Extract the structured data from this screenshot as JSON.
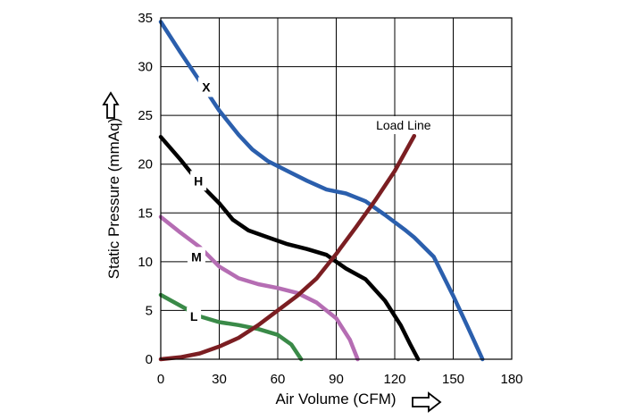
{
  "chart_data": {
    "type": "line",
    "xlabel": "Air Volume (CFM)",
    "ylabel": "Static Pressure (mmAq)",
    "xlim": [
      0,
      180
    ],
    "ylim": [
      0,
      35
    ],
    "x_ticks": [
      0,
      30,
      60,
      90,
      120,
      150,
      180
    ],
    "y_ticks": [
      0,
      5,
      10,
      15,
      20,
      25,
      30,
      35
    ],
    "grid": true,
    "series": [
      {
        "name": "X",
        "color": "#2b5fad",
        "points": [
          [
            0,
            34.6
          ],
          [
            10,
            31.5
          ],
          [
            20,
            28.5
          ],
          [
            30,
            25.5
          ],
          [
            40,
            23
          ],
          [
            47,
            21.5
          ],
          [
            55,
            20.3
          ],
          [
            65,
            19.3
          ],
          [
            75,
            18.3
          ],
          [
            85,
            17.4
          ],
          [
            95,
            17.0
          ],
          [
            105,
            16.2
          ],
          [
            115,
            14.8
          ],
          [
            125,
            13.3
          ],
          [
            130,
            12.5
          ],
          [
            140,
            10.5
          ],
          [
            150,
            6.5
          ],
          [
            157,
            3.5
          ],
          [
            165,
            0
          ]
        ]
      },
      {
        "name": "H",
        "color": "#000000",
        "points": [
          [
            0,
            22.8
          ],
          [
            10,
            20.5
          ],
          [
            20,
            18.0
          ],
          [
            30,
            16.0
          ],
          [
            37,
            14.3
          ],
          [
            45,
            13.2
          ],
          [
            55,
            12.5
          ],
          [
            65,
            11.8
          ],
          [
            75,
            11.3
          ],
          [
            85,
            10.7
          ],
          [
            95,
            9.3
          ],
          [
            105,
            8.2
          ],
          [
            115,
            6.0
          ],
          [
            123,
            3.5
          ],
          [
            128,
            1.5
          ],
          [
            132,
            0
          ]
        ]
      },
      {
        "name": "M",
        "color": "#b56db3",
        "points": [
          [
            0,
            14.6
          ],
          [
            10,
            13.0
          ],
          [
            20,
            11.5
          ],
          [
            30,
            9.5
          ],
          [
            40,
            8.3
          ],
          [
            50,
            7.7
          ],
          [
            60,
            7.3
          ],
          [
            70,
            6.8
          ],
          [
            80,
            5.8
          ],
          [
            90,
            4.2
          ],
          [
            97,
            2.0
          ],
          [
            101,
            0
          ]
        ]
      },
      {
        "name": "L",
        "color": "#3a8a48",
        "points": [
          [
            0,
            6.6
          ],
          [
            10,
            5.5
          ],
          [
            20,
            4.4
          ],
          [
            30,
            3.8
          ],
          [
            40,
            3.5
          ],
          [
            50,
            3.1
          ],
          [
            60,
            2.5
          ],
          [
            67,
            1.5
          ],
          [
            72,
            0
          ]
        ]
      },
      {
        "name": "Load Line",
        "color": "#7b1e22",
        "points": [
          [
            0,
            0
          ],
          [
            10,
            0.2
          ],
          [
            20,
            0.6
          ],
          [
            30,
            1.3
          ],
          [
            40,
            2.2
          ],
          [
            50,
            3.5
          ],
          [
            60,
            5.0
          ],
          [
            70,
            6.5
          ],
          [
            80,
            8.3
          ],
          [
            90,
            10.8
          ],
          [
            100,
            13.5
          ],
          [
            110,
            16.3
          ],
          [
            120,
            19.3
          ],
          [
            130,
            22.9
          ]
        ]
      }
    ]
  }
}
